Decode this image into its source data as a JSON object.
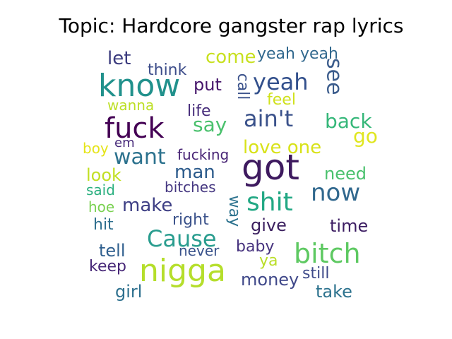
{
  "chart_data": {
    "type": "wordcloud",
    "title": "Topic: Hardcore gangster rap lyrics",
    "colormap": "viridis",
    "background": "#ffffff",
    "words": [
      {
        "text": "got",
        "weight": 1.0,
        "color": "#3e1a5f",
        "orientation": "horizontal"
      },
      {
        "text": "nigga",
        "weight": 0.95,
        "color": "#b5de2b",
        "orientation": "horizontal"
      },
      {
        "text": "know",
        "weight": 0.9,
        "color": "#21918c",
        "orientation": "horizontal"
      },
      {
        "text": "fuck",
        "weight": 0.8,
        "color": "#440154",
        "orientation": "horizontal"
      },
      {
        "text": "bitch",
        "weight": 0.75,
        "color": "#5ec962",
        "orientation": "horizontal"
      },
      {
        "text": "shit",
        "weight": 0.7,
        "color": "#22a884",
        "orientation": "horizontal"
      },
      {
        "text": "now",
        "weight": 0.65,
        "color": "#31688e",
        "orientation": "horizontal"
      },
      {
        "text": "Cause",
        "weight": 0.62,
        "color": "#2a9d8f",
        "orientation": "horizontal"
      },
      {
        "text": "ain't",
        "weight": 0.6,
        "color": "#3b528b",
        "orientation": "horizontal"
      },
      {
        "text": "yeah",
        "weight": 0.58,
        "color": "#33508c",
        "orientation": "horizontal"
      },
      {
        "text": "want",
        "weight": 0.55,
        "color": "#2c728e",
        "orientation": "horizontal"
      },
      {
        "text": "see",
        "weight": 0.53,
        "color": "#3b5c8c",
        "orientation": "vertical"
      },
      {
        "text": "back",
        "weight": 0.5,
        "color": "#35b779",
        "orientation": "horizontal"
      },
      {
        "text": "go",
        "weight": 0.5,
        "color": "#e0e620",
        "orientation": "horizontal"
      },
      {
        "text": "say",
        "weight": 0.48,
        "color": "#4ac16d",
        "orientation": "horizontal"
      },
      {
        "text": "come",
        "weight": 0.46,
        "color": "#c8e020",
        "orientation": "horizontal"
      },
      {
        "text": "let",
        "weight": 0.45,
        "color": "#3a3a7d",
        "orientation": "horizontal"
      },
      {
        "text": "man",
        "weight": 0.45,
        "color": "#2b5a8b",
        "orientation": "horizontal"
      },
      {
        "text": "make",
        "weight": 0.44,
        "color": "#3e3f85",
        "orientation": "horizontal"
      },
      {
        "text": "love one",
        "weight": 0.44,
        "color": "#d8e219",
        "orientation": "horizontal"
      },
      {
        "text": "money",
        "weight": 0.42,
        "color": "#3f4889",
        "orientation": "horizontal"
      },
      {
        "text": "tell",
        "weight": 0.42,
        "color": "#2f5f8e",
        "orientation": "horizontal"
      },
      {
        "text": "take",
        "weight": 0.42,
        "color": "#2c728e",
        "orientation": "horizontal"
      },
      {
        "text": "need",
        "weight": 0.4,
        "color": "#4ac16d",
        "orientation": "horizontal"
      },
      {
        "text": "give",
        "weight": 0.4,
        "color": "#3b1f5f",
        "orientation": "horizontal"
      },
      {
        "text": "time",
        "weight": 0.4,
        "color": "#3d1e63",
        "orientation": "horizontal"
      },
      {
        "text": "girl",
        "weight": 0.4,
        "color": "#2d708e",
        "orientation": "horizontal"
      },
      {
        "text": "look",
        "weight": 0.38,
        "color": "#c2df23",
        "orientation": "horizontal"
      },
      {
        "text": "put",
        "weight": 0.38,
        "color": "#46166b",
        "orientation": "horizontal"
      },
      {
        "text": "yeah yeah",
        "weight": 0.38,
        "color": "#31688e",
        "orientation": "horizontal"
      },
      {
        "text": "think",
        "weight": 0.36,
        "color": "#3d4d8a",
        "orientation": "horizontal"
      },
      {
        "text": "call",
        "weight": 0.36,
        "color": "#3b528b",
        "orientation": "vertical"
      },
      {
        "text": "way",
        "weight": 0.36,
        "color": "#2c728e",
        "orientation": "vertical"
      },
      {
        "text": "baby",
        "weight": 0.36,
        "color": "#46327e",
        "orientation": "horizontal"
      },
      {
        "text": "still",
        "weight": 0.36,
        "color": "#3e4a89",
        "orientation": "horizontal"
      },
      {
        "text": "keep",
        "weight": 0.34,
        "color": "#482878",
        "orientation": "horizontal"
      },
      {
        "text": "hit",
        "weight": 0.34,
        "color": "#2e6e8e",
        "orientation": "horizontal"
      },
      {
        "text": "right",
        "weight": 0.34,
        "color": "#3b528b",
        "orientation": "horizontal"
      },
      {
        "text": "life",
        "weight": 0.34,
        "color": "#472d7b",
        "orientation": "horizontal"
      },
      {
        "text": "feel",
        "weight": 0.34,
        "color": "#d0e11c",
        "orientation": "horizontal"
      },
      {
        "text": "wanna",
        "weight": 0.32,
        "color": "#bddf26",
        "orientation": "horizontal"
      },
      {
        "text": "fucking",
        "weight": 0.32,
        "color": "#482475",
        "orientation": "horizontal"
      },
      {
        "text": "bitches",
        "weight": 0.3,
        "color": "#453781",
        "orientation": "horizontal"
      },
      {
        "text": "never",
        "weight": 0.3,
        "color": "#3a538b",
        "orientation": "horizontal"
      },
      {
        "text": "said",
        "weight": 0.3,
        "color": "#29af7f",
        "orientation": "horizontal"
      },
      {
        "text": "hoe",
        "weight": 0.28,
        "color": "#7ad151",
        "orientation": "horizontal"
      },
      {
        "text": "boy",
        "weight": 0.28,
        "color": "#e5e419",
        "orientation": "horizontal"
      },
      {
        "text": "em",
        "weight": 0.26,
        "color": "#472a7a",
        "orientation": "horizontal"
      },
      {
        "text": "ya",
        "weight": 0.3,
        "color": "#bade28",
        "orientation": "horizontal"
      }
    ]
  }
}
